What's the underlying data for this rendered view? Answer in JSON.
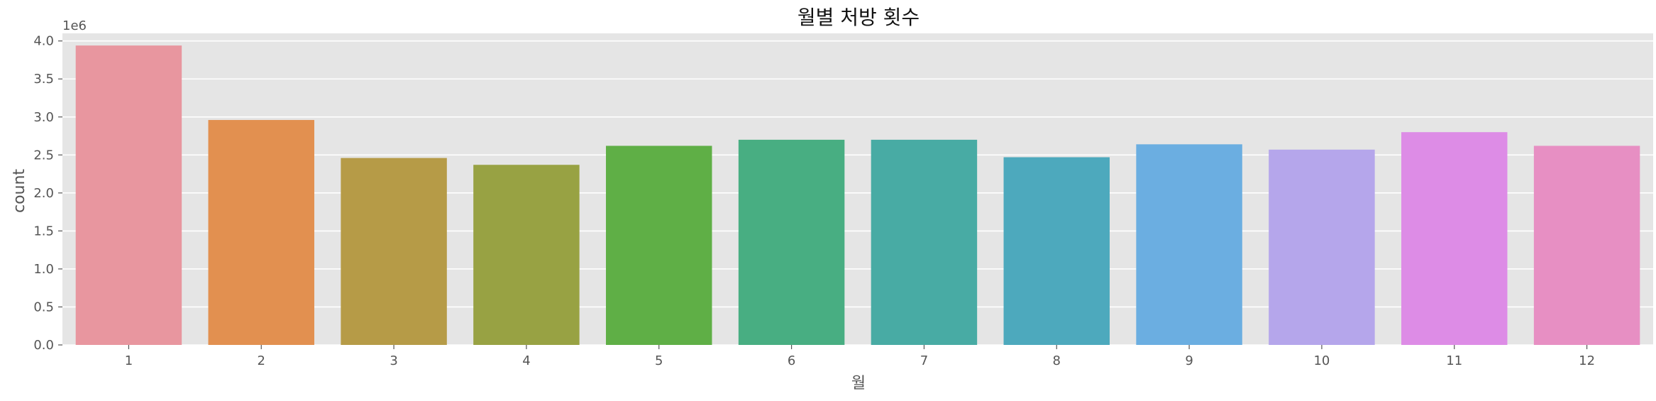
{
  "chart_data": {
    "type": "bar",
    "title": "월별 처방 횟수",
    "xlabel": "월",
    "ylabel": "count",
    "y_offset_label": "1e6",
    "categories": [
      "1",
      "2",
      "3",
      "4",
      "5",
      "6",
      "7",
      "8",
      "9",
      "10",
      "11",
      "12"
    ],
    "values": [
      3940000,
      2960000,
      2460000,
      2370000,
      2620000,
      2700000,
      2700000,
      2470000,
      2640000,
      2570000,
      2800000,
      2620000
    ],
    "ylim": [
      0,
      4100000
    ],
    "yticks": [
      0,
      500000,
      1000000,
      1500000,
      2000000,
      2500000,
      3000000,
      3500000,
      4000000
    ],
    "ytick_labels": [
      "0.0",
      "0.5",
      "1.0",
      "1.5",
      "2.0",
      "2.5",
      "3.0",
      "3.5",
      "4.0"
    ],
    "grid": true,
    "colors": [
      "#E8969F",
      "#E29050",
      "#B69B47",
      "#98A243",
      "#5FAF46",
      "#48AE82",
      "#48ABA4",
      "#4DA9BD",
      "#6BAEE1",
      "#B5A6EB",
      "#DD8CE6",
      "#E78FC3"
    ],
    "background": "#E5E5E5"
  }
}
